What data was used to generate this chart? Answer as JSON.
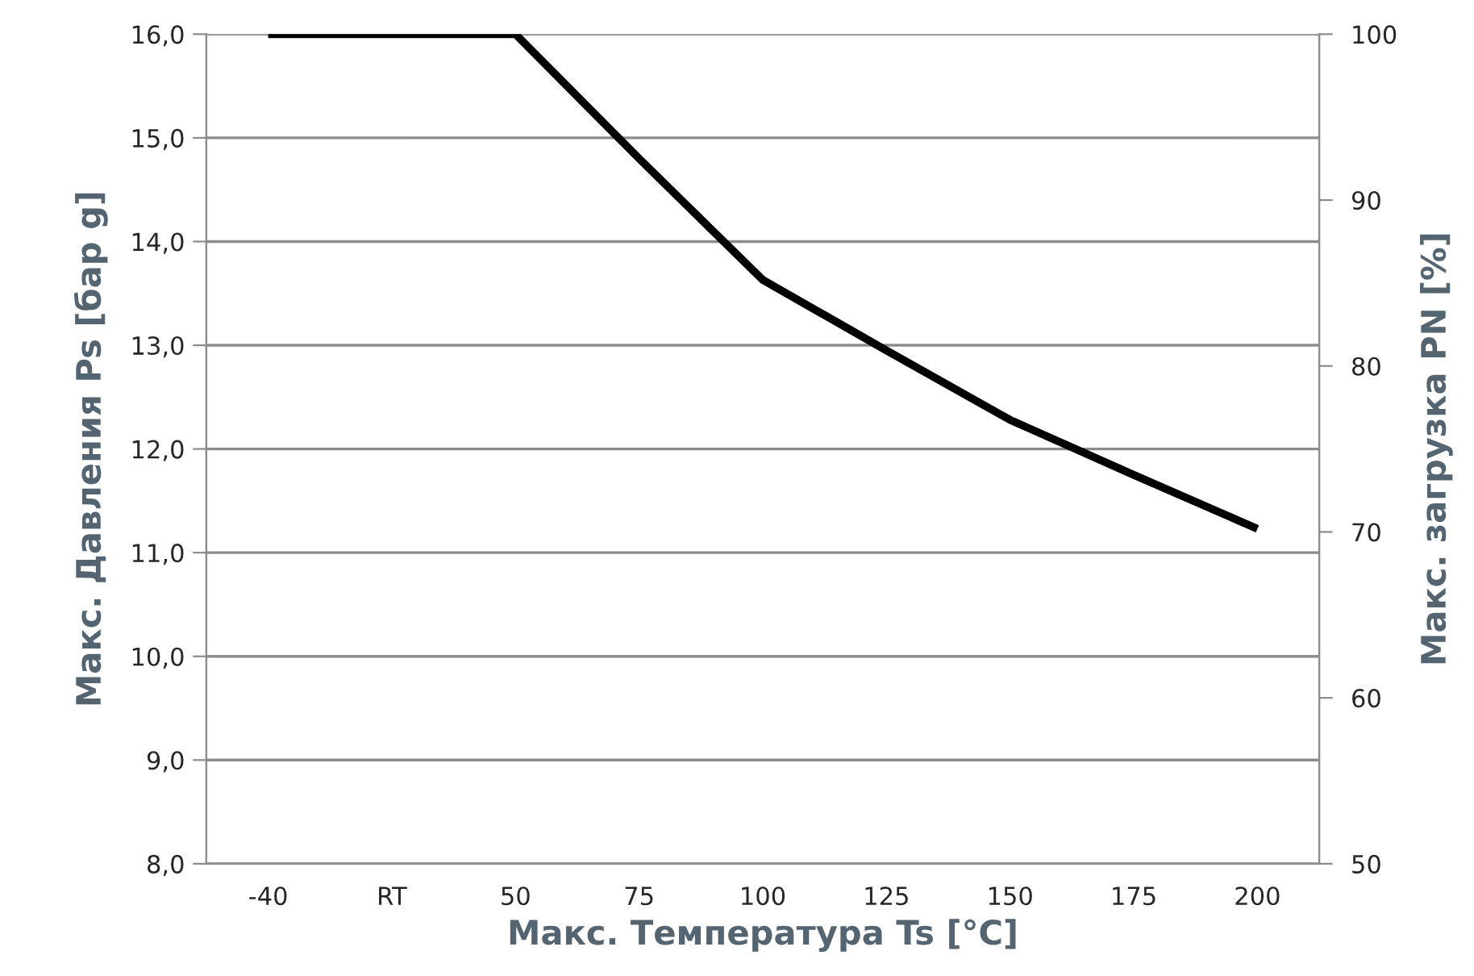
{
  "chart_data": {
    "type": "line",
    "xlabel": "Макс. Температура Ts [°C]",
    "ylabel": "Макс. Давления Ps [бар g]",
    "y2label": "Макс. загрузка PN [%]",
    "categories": [
      "-40",
      "RT",
      "50",
      "75",
      "100",
      "125",
      "150",
      "175",
      "200"
    ],
    "series": [
      {
        "color": "#000000",
        "values": [
          16.0,
          16.0,
          16.0,
          14.8,
          13.63,
          12.95,
          12.28,
          11.75,
          11.23
        ]
      }
    ],
    "ylim": [
      8,
      16
    ],
    "yticks": [
      {
        "value": 8,
        "label": "8,0"
      },
      {
        "value": 9,
        "label": "9,0"
      },
      {
        "value": 10,
        "label": "10,0"
      },
      {
        "value": 11,
        "label": "11,0"
      },
      {
        "value": 12,
        "label": "12,0"
      },
      {
        "value": 13,
        "label": "13,0"
      },
      {
        "value": 14,
        "label": "14,0"
      },
      {
        "value": 15,
        "label": "15,0"
      },
      {
        "value": 16,
        "label": "16,0"
      }
    ],
    "y2lim": [
      50,
      100
    ],
    "y2ticks": [
      50,
      60,
      70,
      80,
      90,
      100
    ],
    "grid": "y",
    "legend": false,
    "marker": "none",
    "line_style": "solid"
  }
}
